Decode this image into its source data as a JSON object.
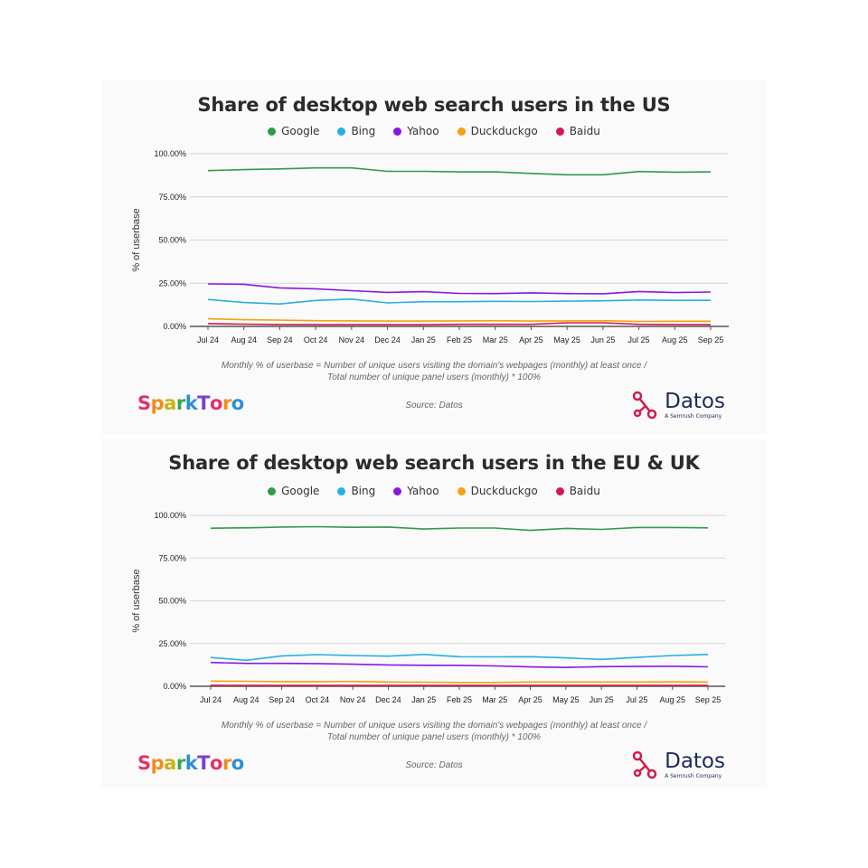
{
  "legend_colors": {
    "Google": "#2e9c4a",
    "Bing": "#27b0dc",
    "Yahoo": "#8a16e6",
    "Duckduckgo": "#f3a212",
    "Baidu": "#d01c4a"
  },
  "chart_data": [
    {
      "type": "line",
      "title": "Share of desktop web search users in the US",
      "ylabel": "% of userbase",
      "ylim": [
        0,
        100
      ],
      "yticks": [
        "0.00%",
        "25.00%",
        "50.00%",
        "75.00%",
        "100.00%"
      ],
      "x": [
        "Jul 24",
        "Aug 24",
        "Sep 24",
        "Oct 24",
        "Nov 24",
        "Dec 24",
        "Jan 25",
        "Feb 25",
        "Mar 25",
        "Apr 25",
        "May 25",
        "Jun 25",
        "Jul 25",
        "Aug 25",
        "Sep 25"
      ],
      "series": [
        {
          "name": "Google",
          "values": [
            90.2,
            90.8,
            91.2,
            91.8,
            91.8,
            89.8,
            89.8,
            89.5,
            89.5,
            88.6,
            87.8,
            87.8,
            89.7,
            89.3,
            89.5
          ]
        },
        {
          "name": "Bing",
          "values": [
            15.6,
            13.8,
            13.0,
            15.0,
            15.8,
            13.6,
            14.3,
            14.3,
            14.5,
            14.4,
            14.6,
            14.8,
            15.3,
            15.1,
            15.1
          ]
        },
        {
          "name": "Yahoo",
          "values": [
            24.6,
            24.4,
            22.3,
            21.8,
            20.7,
            19.7,
            20.1,
            19.1,
            19.0,
            19.4,
            19.0,
            18.9,
            20.2,
            19.6,
            19.9
          ]
        },
        {
          "name": "Duckduckgo",
          "values": [
            4.4,
            3.9,
            3.6,
            3.3,
            3.2,
            3.1,
            3.1,
            3.2,
            3.3,
            3.1,
            3.2,
            3.3,
            2.9,
            3.0,
            3.0
          ]
        },
        {
          "name": "Baidu",
          "values": [
            1.6,
            1.3,
            1.1,
            1.0,
            1.0,
            1.0,
            1.0,
            1.2,
            1.2,
            1.2,
            2.1,
            2.1,
            1.2,
            1.1,
            1.0
          ]
        }
      ],
      "caption": [
        "Monthly % of userbase = Number of unique users visiting the domain's webpages (monthly) at least once /",
        "Total number of unique panel users (monthly) * 100%"
      ],
      "source": "Source: Datos"
    },
    {
      "type": "line",
      "title": "Share of desktop web search users in the EU & UK",
      "ylabel": "% of userbase",
      "ylim": [
        0,
        100
      ],
      "yticks": [
        "0.00%",
        "25.00%",
        "50.00%",
        "75.00%",
        "100.00%"
      ],
      "x": [
        "Jul 24",
        "Aug 24",
        "Sep 24",
        "Oct 24",
        "Nov 24",
        "Dec 24",
        "Jan 25",
        "Feb 25",
        "Mar 25",
        "Apr 25",
        "May 25",
        "Jun 25",
        "Jul 25",
        "Aug 25",
        "Sep 25"
      ],
      "series": [
        {
          "name": "Google",
          "values": [
            92.5,
            92.7,
            93.2,
            93.4,
            93.0,
            93.2,
            92.0,
            92.6,
            92.6,
            91.2,
            92.4,
            91.8,
            92.9,
            92.9,
            92.7
          ]
        },
        {
          "name": "Bing",
          "values": [
            16.8,
            15.2,
            17.8,
            18.5,
            18.0,
            17.6,
            18.6,
            17.3,
            17.2,
            17.3,
            16.6,
            15.7,
            16.9,
            18.0,
            18.6
          ]
        },
        {
          "name": "Yahoo",
          "values": [
            13.9,
            13.4,
            13.4,
            13.3,
            12.9,
            12.5,
            12.3,
            12.2,
            11.9,
            11.3,
            11.0,
            11.5,
            11.6,
            11.7,
            11.4
          ]
        },
        {
          "name": "Duckduckgo",
          "values": [
            3.0,
            2.9,
            2.7,
            2.7,
            2.8,
            2.5,
            2.4,
            2.2,
            2.2,
            2.5,
            2.5,
            2.5,
            2.5,
            2.6,
            2.5
          ]
        },
        {
          "name": "Baidu",
          "values": [
            0.6,
            0.5,
            0.5,
            0.5,
            0.5,
            0.5,
            0.5,
            0.5,
            0.5,
            0.5,
            0.5,
            0.5,
            0.5,
            0.5,
            0.5
          ]
        }
      ],
      "caption": [
        "Monthly % of userbase = Number of unique users visiting the domain's webpages (monthly) at least once /",
        "Total number of unique panel users (monthly) * 100%"
      ],
      "source": "Source: Datos"
    }
  ],
  "branding": {
    "sparktoro": "SparkToro",
    "sparktoro_colors": [
      "#e0336a",
      "#f28c1a",
      "#c9b21c",
      "#37a84e",
      "#2a8fd6",
      "#7d3fd0",
      "#e0336a",
      "#f28c1a",
      "#2a8fd6"
    ],
    "datos": "Datos",
    "datos_sub": "A Semrush Company"
  }
}
